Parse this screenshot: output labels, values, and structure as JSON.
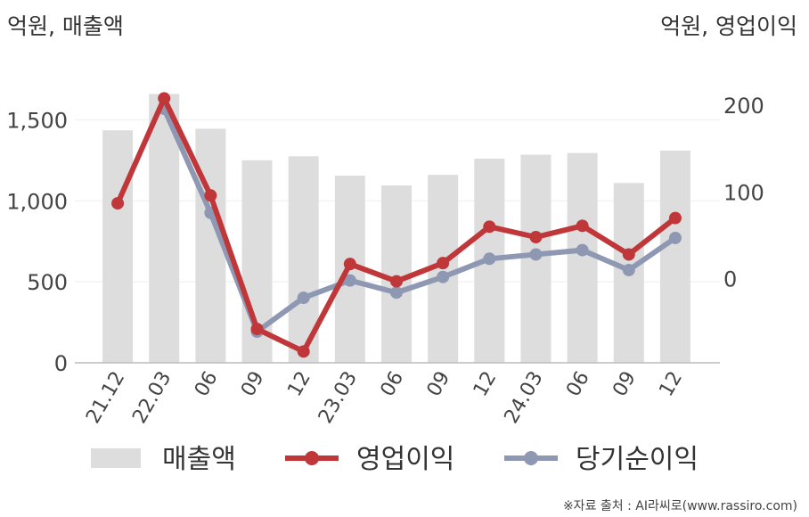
{
  "chart_data": {
    "type": "bar",
    "left_axis_label": "억원, 매출액",
    "right_axis_label": "억원, 영업이익",
    "categories": [
      "21.12",
      "22.03",
      "06",
      "09",
      "12",
      "23.03",
      "06",
      "09",
      "12",
      "24.03",
      "06",
      "09",
      "12"
    ],
    "left_ticks": [
      "0",
      "500",
      "1,000",
      "1,500"
    ],
    "left_tick_values": [
      0,
      500,
      1000,
      1500
    ],
    "right_ticks": [
      "0",
      "100",
      "200"
    ],
    "right_tick_values": [
      0,
      100,
      200
    ],
    "ylim_left": [
      0,
      1750
    ],
    "ylim_right": [
      -97,
      230
    ],
    "series": [
      {
        "name": "매출액",
        "type": "bar",
        "axis": "left",
        "color": "#dddddd",
        "values": [
          1435,
          1660,
          1445,
          1250,
          1275,
          1155,
          1095,
          1160,
          1260,
          1285,
          1295,
          1110,
          1310
        ]
      },
      {
        "name": "영업이익",
        "type": "line",
        "axis": "right",
        "color": "#c0373a",
        "values": [
          87,
          208,
          96,
          -58,
          -84,
          17,
          -3,
          18,
          60,
          48,
          61,
          28,
          70
        ]
      },
      {
        "name": "당기순이익",
        "type": "line",
        "axis": "right",
        "color": "#8e98b2",
        "values": [
          null,
          196,
          76,
          -61,
          -22,
          -2,
          -16,
          2,
          23,
          28,
          33,
          10,
          47
        ]
      }
    ],
    "grid": true,
    "legend": "bottom"
  },
  "source_note": "※자료 출처 : AI라씨로(www.rassiro.com)"
}
